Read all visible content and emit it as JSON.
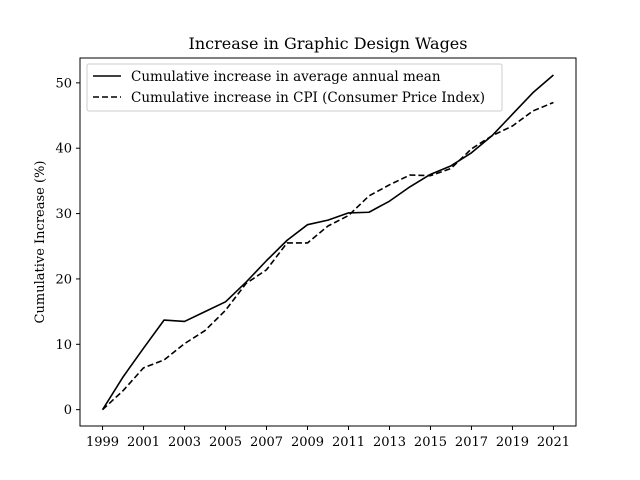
{
  "chart_data": {
    "type": "line",
    "title": "Increase in Graphic Design Wages",
    "xlabel": "",
    "ylabel": "Cumulative Increase (%)",
    "x": [
      1999,
      2000,
      2001,
      2002,
      2003,
      2004,
      2005,
      2006,
      2007,
      2008,
      2009,
      2010,
      2011,
      2012,
      2013,
      2014,
      2015,
      2016,
      2017,
      2018,
      2019,
      2020,
      2021
    ],
    "xticks": [
      "1999",
      "2001",
      "2003",
      "2005",
      "2007",
      "2009",
      "2011",
      "2013",
      "2015",
      "2017",
      "2019",
      "2021"
    ],
    "yticks": [
      "0",
      "10",
      "20",
      "30",
      "40",
      "50"
    ],
    "xlim": [
      1997.9,
      2022.1
    ],
    "ylim": [
      -2.5,
      53.8
    ],
    "grid": false,
    "legend_position": "upper-left",
    "series": [
      {
        "name": "Cumulative increase in average annual mean",
        "style": "solid",
        "color": "#000000",
        "values": [
          0,
          5.0,
          9.4,
          13.7,
          13.5,
          15.0,
          16.5,
          19.5,
          22.8,
          25.9,
          28.3,
          29.0,
          30.1,
          30.2,
          31.9,
          34.1,
          36.0,
          37.3,
          39.3,
          41.9,
          45.2,
          48.5,
          51.2
        ]
      },
      {
        "name": "Cumulative increase in CPI (Consumer Price Index)",
        "style": "dashed",
        "color": "#000000",
        "values": [
          0,
          2.9,
          6.4,
          7.6,
          10.1,
          12.1,
          15.2,
          19.3,
          21.4,
          25.5,
          25.5,
          28.1,
          29.7,
          32.7,
          34.4,
          35.9,
          35.8,
          36.9,
          39.9,
          41.9,
          43.4,
          45.7,
          47.0
        ]
      }
    ]
  }
}
